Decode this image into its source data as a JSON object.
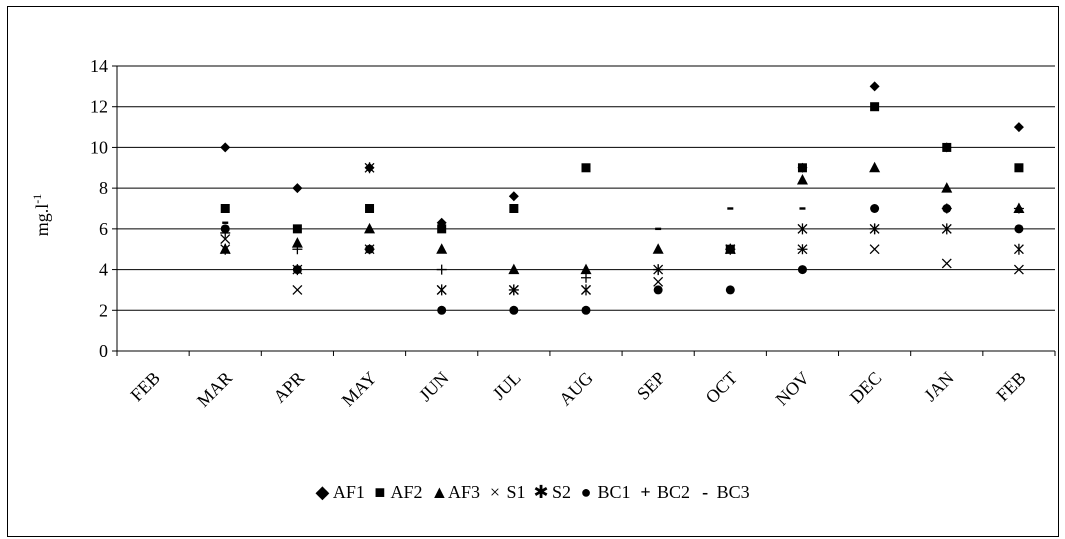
{
  "chart_data": {
    "type": "scatter",
    "ylabel": "mg.l-1",
    "ylabel_main": "mg.l",
    "ylabel_sup": "-1",
    "ylim": [
      0,
      14
    ],
    "yticks": [
      0,
      2,
      4,
      6,
      8,
      10,
      12,
      14
    ],
    "ytick_labels": [
      "0",
      "2",
      "4",
      "6",
      "8",
      "10",
      "12",
      "14"
    ],
    "grid": true,
    "legend_position": "bottom",
    "categories": [
      "FEB",
      "MAR",
      "APR",
      "MAY",
      "JUN",
      "JUL",
      "AUG",
      "SEP",
      "OCT",
      "NOV",
      "DEC",
      "JAN",
      "FEB"
    ],
    "series": [
      {
        "name": "AF1",
        "marker": "diamond",
        "values": [
          null,
          10,
          8,
          9,
          6.3,
          7.6,
          null,
          null,
          5,
          9,
          13,
          10,
          11
        ]
      },
      {
        "name": "AF2",
        "marker": "square",
        "values": [
          null,
          7,
          6,
          7,
          6,
          7,
          9,
          null,
          5,
          9,
          12,
          10,
          9
        ]
      },
      {
        "name": "AF3",
        "marker": "triangle",
        "values": [
          null,
          5,
          5.3,
          6,
          5,
          4,
          4,
          5,
          5,
          8.4,
          9,
          8,
          7
        ]
      },
      {
        "name": "S1",
        "marker": "x",
        "values": [
          null,
          5.5,
          3,
          5,
          3,
          3,
          3,
          3.4,
          5,
          5,
          5,
          4.3,
          4
        ]
      },
      {
        "name": "S2",
        "marker": "star",
        "values": [
          null,
          5,
          4,
          9,
          3,
          3,
          3,
          4,
          5,
          6,
          6,
          6,
          5
        ]
      },
      {
        "name": "BC1",
        "marker": "circle",
        "values": [
          null,
          6,
          4,
          5,
          2,
          2,
          2,
          3,
          3,
          4,
          7,
          7,
          6
        ]
      },
      {
        "name": "BC2",
        "marker": "plus",
        "values": [
          null,
          5.8,
          5,
          5,
          4,
          3,
          3.6,
          4,
          5,
          5,
          6,
          7,
          7
        ]
      },
      {
        "name": "BC3",
        "marker": "dash",
        "values": [
          null,
          6.3,
          6,
          7,
          6,
          7,
          9,
          6,
          7,
          7,
          7,
          10,
          7
        ]
      }
    ]
  }
}
